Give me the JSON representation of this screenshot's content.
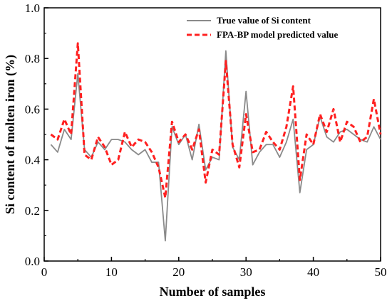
{
  "chart_data": {
    "type": "line",
    "xlabel": "Number of samples",
    "ylabel": "Si content of molten iron (%)",
    "xlim": [
      0,
      50
    ],
    "ylim": [
      0.0,
      1.0
    ],
    "x_ticks": [
      0,
      10,
      20,
      30,
      40,
      50
    ],
    "y_ticks": [
      0.0,
      0.2,
      0.4,
      0.6,
      0.8,
      1.0
    ],
    "x_tick_labels": [
      "0",
      "10",
      "20",
      "30",
      "40",
      "50"
    ],
    "y_tick_labels": [
      "0.0",
      "0.2",
      "0.4",
      "0.6",
      "0.8",
      "1.0"
    ],
    "grid": false,
    "legend_position": "top-right",
    "x": [
      1,
      2,
      3,
      4,
      5,
      6,
      7,
      8,
      9,
      10,
      11,
      12,
      13,
      14,
      15,
      16,
      17,
      18,
      19,
      20,
      21,
      22,
      23,
      24,
      25,
      26,
      27,
      28,
      29,
      30,
      31,
      32,
      33,
      34,
      35,
      36,
      37,
      38,
      39,
      40,
      41,
      42,
      43,
      44,
      45,
      46,
      47,
      48,
      49,
      50
    ],
    "series": [
      {
        "name": "True value of Si content",
        "color": "#8a8a8a",
        "style": "solid",
        "values": [
          0.46,
          0.43,
          0.52,
          0.48,
          0.74,
          0.44,
          0.41,
          0.47,
          0.44,
          0.48,
          0.48,
          0.47,
          0.44,
          0.42,
          0.44,
          0.39,
          0.39,
          0.08,
          0.53,
          0.46,
          0.5,
          0.4,
          0.54,
          0.36,
          0.41,
          0.4,
          0.83,
          0.45,
          0.4,
          0.67,
          0.38,
          0.43,
          0.46,
          0.46,
          0.41,
          0.47,
          0.56,
          0.27,
          0.44,
          0.46,
          0.57,
          0.49,
          0.47,
          0.51,
          0.52,
          0.5,
          0.48,
          0.47,
          0.53,
          0.48
        ]
      },
      {
        "name": "FPA-BP model predicted value",
        "color": "#ff2020",
        "style": "dashed",
        "values": [
          0.5,
          0.48,
          0.56,
          0.5,
          0.86,
          0.42,
          0.4,
          0.49,
          0.45,
          0.38,
          0.4,
          0.51,
          0.45,
          0.48,
          0.47,
          0.43,
          0.37,
          0.25,
          0.55,
          0.47,
          0.5,
          0.44,
          0.52,
          0.31,
          0.44,
          0.42,
          0.79,
          0.46,
          0.37,
          0.58,
          0.43,
          0.44,
          0.51,
          0.47,
          0.44,
          0.53,
          0.69,
          0.32,
          0.5,
          0.46,
          0.58,
          0.51,
          0.6,
          0.47,
          0.55,
          0.53,
          0.47,
          0.49,
          0.64,
          0.5
        ]
      }
    ]
  }
}
